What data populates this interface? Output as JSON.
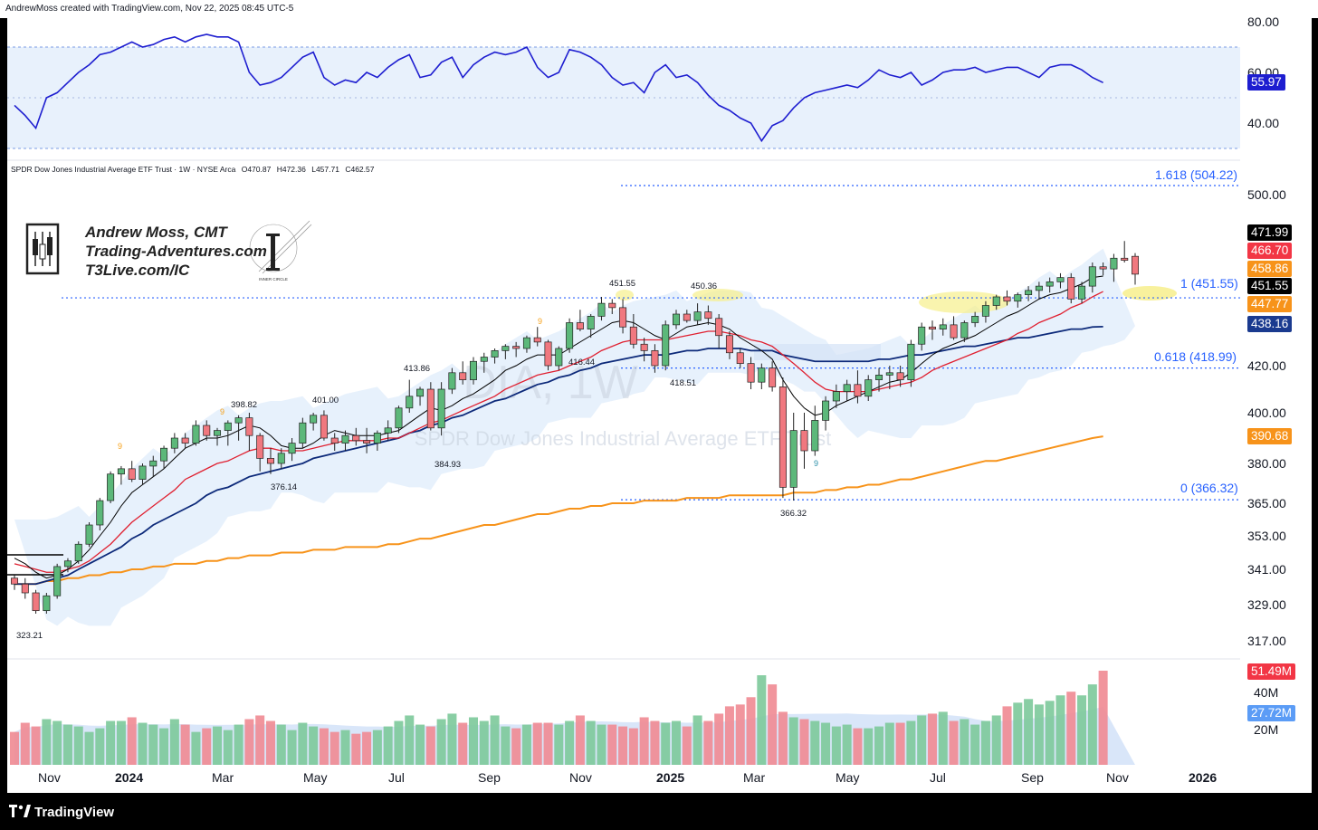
{
  "header": {
    "text": "AndrewMoss created with TradingView.com, Nov 22, 2025 08:45 UTC-5"
  },
  "footer": {
    "brand": "TradingView"
  },
  "symbol_line": {
    "name": "SPDR Dow Jones Industrial Average ETF Trust · 1W · NYSE Arca",
    "open": "O470.87",
    "high": "H472.36",
    "low": "L457.71",
    "close": "C462.57"
  },
  "watermark": {
    "ticker": "DIA, 1W",
    "name": "SPDR Dow Jones Industrial Average ETF Trust"
  },
  "author": {
    "name": "Andrew Moss, CMT",
    "site": "Trading-Adventures.com",
    "url": "T3Live.com/IC",
    "logo_text": "INNER CIRCLE"
  },
  "rsi_axis": [
    "80.00",
    "60.00",
    "40.00"
  ],
  "rsi_value": "55.97",
  "price_axis": [
    "500.00",
    "420.00",
    "400.00",
    "380.00",
    "365.00",
    "353.00",
    "341.00",
    "329.00",
    "317.00"
  ],
  "price_tags": [
    {
      "text": "471.99",
      "bg": "#000000"
    },
    {
      "text": "466.70",
      "bg": "#f23645"
    },
    {
      "text": "458.86",
      "bg": "#f7931a"
    },
    {
      "text": "451.55",
      "bg": "#000000"
    },
    {
      "text": "447.77",
      "bg": "#f7931a"
    },
    {
      "text": "438.16",
      "bg": "#1a3a8f"
    },
    {
      "text": "390.68",
      "bg": "#f7931a"
    }
  ],
  "fib_levels": [
    {
      "label": "1.618 (504.22)"
    },
    {
      "label": "1 (451.55)"
    },
    {
      "label": "0.618 (418.99)"
    },
    {
      "label": "0 (366.32)"
    }
  ],
  "swing_labels": [
    "451.55",
    "450.36",
    "413.86",
    "416.44",
    "418.51",
    "398.82",
    "401.00",
    "376.14",
    "384.93",
    "366.32",
    "323.21"
  ],
  "td_labels": [
    "9",
    "9",
    "9",
    "9"
  ],
  "volume_axis": [
    "40M",
    "20M"
  ],
  "volume_tags": [
    {
      "text": "51.49M",
      "bg": "#f23645"
    },
    {
      "text": "27.72M",
      "bg": "#5b9cf6"
    }
  ],
  "time_axis": [
    "Nov",
    "2024",
    "Mar",
    "May",
    "Jul",
    "Sep",
    "Nov",
    "2025",
    "Mar",
    "May",
    "Jul",
    "Sep",
    "Nov",
    "2026"
  ],
  "colors": {
    "up": "#5cb87a",
    "down": "#f0787f",
    "rsi": "#1e1ed0",
    "fib": "#2962ff",
    "ema_short": "#000000",
    "ema_mid": "#e02030",
    "ema_blue": "#0d2a7a",
    "ma_orange": "#f7931a",
    "band": "#e3eefb",
    "volume_avg": "#cfe0f7"
  },
  "chart_data": {
    "type": "candlestick",
    "interval": "1W",
    "ylim_price": [
      310,
      512
    ],
    "ylim_rsi": [
      28,
      84
    ],
    "rsi_band": [
      30,
      70
    ],
    "candles": [
      [
        338,
        339,
        334,
        336
      ],
      [
        336,
        338,
        331,
        333
      ],
      [
        333,
        334,
        326,
        327
      ],
      [
        327,
        333,
        326,
        332
      ],
      [
        332,
        343,
        331,
        342
      ],
      [
        342,
        345,
        340,
        344
      ],
      [
        344,
        351,
        343,
        350
      ],
      [
        350,
        358,
        349,
        357
      ],
      [
        357,
        367,
        355,
        366
      ],
      [
        366,
        377,
        365,
        376
      ],
      [
        376,
        379,
        372,
        378
      ],
      [
        378,
        381,
        373,
        374
      ],
      [
        374,
        380,
        372,
        379
      ],
      [
        379,
        383,
        375,
        381
      ],
      [
        381,
        387,
        378,
        386
      ],
      [
        386,
        392,
        384,
        390
      ],
      [
        390,
        392,
        386,
        388
      ],
      [
        388,
        397,
        387,
        395
      ],
      [
        395,
        397,
        389,
        391
      ],
      [
        391,
        394,
        387,
        393
      ],
      [
        393,
        397,
        387,
        396
      ],
      [
        396,
        399,
        389,
        398
      ],
      [
        398,
        400,
        385,
        391
      ],
      [
        391,
        392,
        377,
        382
      ],
      [
        382,
        386,
        376,
        380
      ],
      [
        380,
        386,
        378,
        384
      ],
      [
        384,
        390,
        381,
        388
      ],
      [
        388,
        398,
        386,
        396
      ],
      [
        396,
        400,
        393,
        399
      ],
      [
        399,
        401,
        389,
        390
      ],
      [
        390,
        392,
        385,
        388
      ],
      [
        388,
        393,
        385,
        391
      ],
      [
        391,
        394,
        387,
        389
      ],
      [
        389,
        394,
        384,
        388
      ],
      [
        388,
        393,
        385,
        392
      ],
      [
        392,
        397,
        389,
        394
      ],
      [
        394,
        403,
        392,
        402
      ],
      [
        402,
        414,
        400,
        407
      ],
      [
        407,
        411,
        403,
        410
      ],
      [
        410,
        413,
        393,
        394
      ],
      [
        394,
        413,
        391,
        410
      ],
      [
        410,
        419,
        408,
        417
      ],
      [
        417,
        422,
        412,
        414
      ],
      [
        414,
        424,
        412,
        422
      ],
      [
        422,
        426,
        417,
        424
      ],
      [
        424,
        428,
        421,
        427
      ],
      [
        427,
        430,
        423,
        429
      ],
      [
        429,
        431,
        424,
        428
      ],
      [
        428,
        434,
        426,
        433
      ],
      [
        433,
        438,
        429,
        431
      ],
      [
        431,
        432,
        418,
        420
      ],
      [
        420,
        429,
        418,
        428
      ],
      [
        428,
        442,
        426,
        440
      ],
      [
        440,
        446,
        436,
        437
      ],
      [
        437,
        444,
        433,
        443
      ],
      [
        443,
        452,
        441,
        449
      ],
      [
        449,
        451,
        444,
        447
      ],
      [
        447,
        451,
        435,
        438
      ],
      [
        438,
        444,
        428,
        430
      ],
      [
        430,
        433,
        422,
        427
      ],
      [
        427,
        430,
        417,
        420
      ],
      [
        420,
        441,
        418,
        439
      ],
      [
        439,
        446,
        437,
        444
      ],
      [
        444,
        446,
        440,
        441
      ],
      [
        441,
        449,
        439,
        445
      ],
      [
        445,
        448,
        439,
        442
      ],
      [
        442,
        444,
        428,
        434
      ],
      [
        434,
        436,
        423,
        426
      ],
      [
        426,
        428,
        419,
        421
      ],
      [
        421,
        424,
        410,
        413
      ],
      [
        413,
        421,
        410,
        419
      ],
      [
        419,
        422,
        409,
        411
      ],
      [
        411,
        415,
        367,
        371
      ],
      [
        371,
        400,
        366,
        393
      ],
      [
        393,
        400,
        378,
        385
      ],
      [
        385,
        403,
        383,
        397
      ],
      [
        397,
        407,
        393,
        405
      ],
      [
        405,
        412,
        402,
        409
      ],
      [
        409,
        414,
        405,
        412
      ],
      [
        412,
        418,
        404,
        407
      ],
      [
        407,
        416,
        405,
        414
      ],
      [
        414,
        419,
        409,
        416
      ],
      [
        416,
        420,
        410,
        417
      ],
      [
        417,
        420,
        411,
        414
      ],
      [
        414,
        432,
        411,
        430
      ],
      [
        430,
        440,
        427,
        438
      ],
      [
        438,
        441,
        432,
        437
      ],
      [
        437,
        442,
        434,
        439
      ],
      [
        439,
        443,
        432,
        433
      ],
      [
        433,
        441,
        431,
        440
      ],
      [
        440,
        445,
        438,
        443
      ],
      [
        443,
        450,
        440,
        448
      ],
      [
        448,
        453,
        446,
        452
      ],
      [
        452,
        455,
        448,
        450
      ],
      [
        450,
        454,
        447,
        453
      ],
      [
        453,
        457,
        450,
        455
      ],
      [
        455,
        459,
        451,
        457
      ],
      [
        457,
        461,
        454,
        459
      ],
      [
        459,
        463,
        456,
        461
      ],
      [
        461,
        463,
        449,
        451
      ],
      [
        451,
        459,
        449,
        457
      ],
      [
        457,
        468,
        454,
        466
      ],
      [
        466,
        468,
        462,
        465
      ],
      [
        465,
        472,
        459,
        470
      ],
      [
        470,
        478,
        468,
        469
      ],
      [
        470.87,
        472.36,
        457.71,
        462.57
      ]
    ],
    "rsi": [
      47,
      43,
      38,
      50,
      52,
      56,
      60,
      63,
      67,
      68,
      70,
      72,
      70,
      71,
      73,
      74,
      72,
      74,
      75,
      74,
      74,
      72,
      60,
      55,
      56,
      58,
      62,
      66,
      68,
      58,
      55,
      57,
      56,
      60,
      58,
      62,
      65,
      67,
      58,
      59,
      64,
      66,
      58,
      63,
      66,
      68,
      67,
      68,
      70,
      62,
      58,
      60,
      69,
      68,
      66,
      63,
      58,
      55,
      56,
      52,
      60,
      63,
      58,
      59,
      56,
      51,
      47,
      45,
      42,
      40,
      33,
      39,
      41,
      46,
      50,
      52,
      53,
      54,
      55,
      54,
      57,
      61,
      59,
      58,
      60,
      55,
      57,
      60,
      61,
      61,
      62,
      60,
      61,
      62,
      62,
      60,
      58,
      62,
      63,
      63,
      61,
      58,
      55.97
    ],
    "volume_m": [
      18,
      23,
      21,
      25,
      24,
      22,
      21,
      18,
      20,
      24,
      24,
      26,
      23,
      22,
      20,
      25,
      22,
      18,
      20,
      21,
      19,
      22,
      25,
      27,
      24,
      22,
      19,
      23,
      21,
      20,
      18,
      19,
      17,
      18,
      19,
      21,
      24,
      27,
      22,
      21,
      25,
      28,
      23,
      26,
      24,
      27,
      21,
      20,
      22,
      23,
      23,
      22,
      24,
      27,
      24,
      22,
      22,
      21,
      20,
      26,
      24,
      23,
      24,
      21,
      27,
      24,
      28,
      32,
      33,
      37,
      49,
      44,
      29,
      26,
      25,
      24,
      23,
      21,
      22,
      20,
      20,
      21,
      23,
      23,
      24,
      27,
      28,
      29,
      24,
      25,
      22,
      24,
      27,
      32,
      34,
      36,
      33,
      35,
      38,
      40,
      38,
      44,
      51.49
    ],
    "ema_short": [
      345,
      343,
      340,
      338,
      339,
      341,
      344,
      348,
      353,
      358,
      364,
      369,
      372,
      375,
      378,
      382,
      386,
      388,
      390,
      390,
      391,
      393,
      395,
      394,
      391,
      387,
      386,
      386,
      388,
      391,
      393,
      392,
      391,
      391,
      391,
      392,
      393,
      396,
      399,
      402,
      401,
      403,
      406,
      408,
      411,
      414,
      418,
      420,
      423,
      425,
      425,
      425,
      428,
      431,
      434,
      437,
      440,
      441,
      440,
      437,
      434,
      432,
      435,
      438,
      439,
      440,
      439,
      437,
      433,
      430,
      427,
      423,
      414,
      407,
      402,
      399,
      400,
      403,
      405,
      407,
      409,
      411,
      413,
      414,
      417,
      421,
      425,
      428,
      430,
      432,
      434,
      437,
      440,
      443,
      445,
      448,
      451,
      453,
      454,
      456,
      458,
      461,
      461.7
    ],
    "ema_mid": [
      343,
      342,
      341,
      340,
      340,
      341,
      342,
      344,
      347,
      350,
      354,
      358,
      361,
      364,
      367,
      370,
      374,
      376,
      378,
      380,
      381,
      383,
      385,
      386,
      386,
      385,
      385,
      385,
      386,
      387,
      388,
      389,
      389,
      389,
      389,
      390,
      390,
      392,
      394,
      396,
      397,
      399,
      401,
      403,
      405,
      407,
      410,
      412,
      414,
      416,
      417,
      418,
      420,
      422,
      424,
      427,
      429,
      431,
      432,
      432,
      432,
      432,
      433,
      434,
      435,
      436,
      436,
      435,
      434,
      432,
      431,
      429,
      425,
      421,
      417,
      413,
      410,
      409,
      409,
      409,
      409,
      410,
      411,
      412,
      413,
      415,
      418,
      420,
      422,
      424,
      426,
      428,
      430,
      432,
      435,
      437,
      440,
      442,
      444,
      447,
      449,
      452,
      454.5
    ],
    "ema_blue": [
      336,
      336,
      336,
      337,
      338,
      339,
      341,
      343,
      345,
      347,
      349,
      352,
      354,
      357,
      359,
      361,
      363,
      365,
      368,
      370,
      371,
      373,
      375,
      376,
      377,
      378,
      379,
      380,
      382,
      383,
      384,
      385,
      386,
      387,
      388,
      389,
      390,
      392,
      393,
      395,
      396,
      398,
      399,
      401,
      403,
      405,
      406,
      408,
      410,
      412,
      413,
      415,
      416,
      418,
      419,
      421,
      422,
      423,
      424,
      425,
      425,
      425,
      426,
      427,
      427,
      428,
      428,
      428,
      428,
      427,
      427,
      427,
      425,
      424,
      423,
      422,
      422,
      422,
      422,
      422,
      422,
      423,
      423,
      424,
      425,
      425,
      426,
      427,
      428,
      429,
      429,
      430,
      431,
      432,
      433,
      433,
      434,
      435,
      436,
      437,
      437,
      438,
      438.16
    ],
    "ma_orange": [
      336,
      336,
      336,
      337,
      337,
      338,
      338,
      339,
      339,
      340,
      340,
      341,
      341,
      342,
      342,
      343,
      343,
      343,
      344,
      344,
      345,
      345,
      346,
      346,
      346,
      347,
      347,
      347,
      348,
      348,
      348,
      349,
      349,
      349,
      349,
      350,
      350,
      351,
      352,
      352,
      353,
      354,
      355,
      356,
      357,
      357,
      358,
      359,
      360,
      361,
      361,
      362,
      363,
      363,
      364,
      364,
      365,
      365,
      365,
      366,
      366,
      366,
      366,
      367,
      367,
      367,
      367,
      368,
      368,
      368,
      368,
      368,
      368,
      369,
      369,
      369,
      370,
      370,
      371,
      371,
      372,
      372,
      373,
      374,
      374,
      375,
      376,
      377,
      378,
      379,
      380,
      381,
      381,
      382,
      383,
      384,
      385,
      386,
      387,
      388,
      389,
      390,
      390.68
    ]
  }
}
